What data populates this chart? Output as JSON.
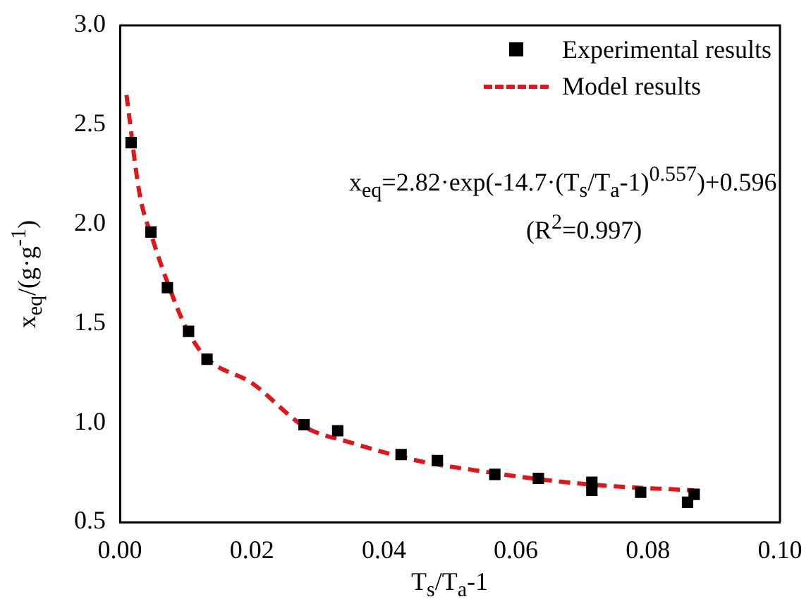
{
  "chart_data": {
    "type": "scatter",
    "xlabel": "T$_{s}$/T$_{a}$-1",
    "ylabel": "x$_{eq}$/(g·g$^{-1}$)",
    "xlim": [
      0,
      0.1
    ],
    "xticks": [
      {
        "value": 0,
        "label": "0.00"
      },
      {
        "value": 0.02,
        "label": "0.02"
      },
      {
        "value": 0.04,
        "label": "0.04"
      },
      {
        "value": 0.06,
        "label": "0.06"
      },
      {
        "value": 0.08,
        "label": "0.08"
      },
      {
        "value": 0.1,
        "label": "0.10"
      }
    ],
    "ylim": [
      0.5,
      3
    ],
    "yticks": [
      0.5,
      {
        "value": 1,
        "label": "1.0"
      },
      1.5,
      {
        "value": 2,
        "label": "2.0"
      },
      2.5,
      {
        "value": 3,
        "label": "3.0"
      }
    ],
    "grid": false,
    "legend": "top right",
    "annotations": [
      "x$_{eq}$=2.82·exp(-14.7·(T$_{s}$/T$_{a}$-1)$^{0.557}$)+0.596",
      "(R$^{2}$=0.997)"
    ],
    "series": [
      {
        "name": "Experimental results",
        "type": "scatter",
        "marker": "square",
        "color": "#000000",
        "x": [
          0.0017,
          0.0047,
          0.0072,
          0.0104,
          0.0132,
          0.0279,
          0.033,
          0.0426,
          0.0481,
          0.0568,
          0.0634,
          0.0715,
          0.0715,
          0.0789,
          0.086,
          0.087
        ],
        "values": [
          2.41,
          1.96,
          1.68,
          1.46,
          1.32,
          0.99,
          0.96,
          0.84,
          0.81,
          0.74,
          0.72,
          0.7,
          0.66,
          0.65,
          0.6,
          0.64
        ]
      },
      {
        "name": "Model results",
        "type": "line",
        "marker": "none",
        "line_style": "dashed",
        "color": "#e0161b",
        "x": [
          0.001,
          0.003,
          0.005,
          0.0075,
          0.01,
          0.013,
          0.02,
          0.028,
          0.035,
          0.045,
          0.055,
          0.065,
          0.075,
          0.087
        ],
        "values": [
          2.65,
          2.15,
          1.92,
          1.68,
          1.48,
          1.33,
          1.2,
          0.98,
          0.9,
          0.81,
          0.755,
          0.71,
          0.68,
          0.66
        ]
      }
    ]
  }
}
